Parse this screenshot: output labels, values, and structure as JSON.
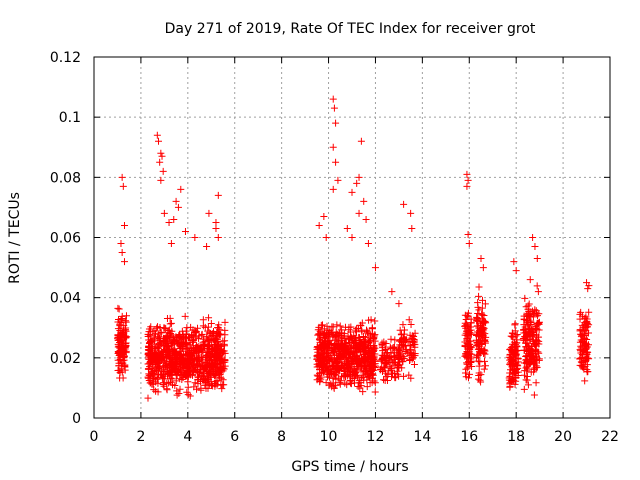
{
  "chart_data": {
    "type": "scatter",
    "title": "Day 271 of 2019, Rate Of TEC Index for receiver grot",
    "xlabel": "GPS time / hours",
    "ylabel": "ROTI / TECUs",
    "xlim": [
      0,
      22
    ],
    "ylim": [
      0,
      0.12
    ],
    "x_ticks": [
      "0",
      "2",
      "4",
      "6",
      "8",
      "10",
      "12",
      "14",
      "16",
      "18",
      "20",
      "22"
    ],
    "y_ticks": [
      "0",
      "0.02",
      "0.04",
      "0.06",
      "0.08",
      "0.1",
      "0.12"
    ],
    "grid": true,
    "marker": "+",
    "color": "#ff0000",
    "series": [
      {
        "name": "ROTI",
        "clusters": [
          {
            "x_range": [
              1.0,
              1.4
            ],
            "y_range": [
              0.01,
              0.04
            ],
            "count": 130
          },
          {
            "x_range": [
              2.3,
              5.6
            ],
            "y_range": [
              0.005,
              0.035
            ],
            "count": 900
          },
          {
            "x_range": [
              9.5,
              12.0
            ],
            "y_range": [
              0.006,
              0.035
            ],
            "count": 700
          },
          {
            "x_range": [
              12.2,
              13.0
            ],
            "y_range": [
              0.008,
              0.03
            ],
            "count": 90
          },
          {
            "x_range": [
              13.0,
              13.7
            ],
            "y_range": [
              0.012,
              0.035
            ],
            "count": 80
          },
          {
            "x_range": [
              15.8,
              16.1
            ],
            "y_range": [
              0.01,
              0.04
            ],
            "count": 90
          },
          {
            "x_range": [
              16.3,
              16.7
            ],
            "y_range": [
              0.008,
              0.045
            ],
            "count": 110
          },
          {
            "x_range": [
              17.7,
              18.1
            ],
            "y_range": [
              0.005,
              0.035
            ],
            "count": 110
          },
          {
            "x_range": [
              18.3,
              19.0
            ],
            "y_range": [
              0.006,
              0.045
            ],
            "count": 200
          },
          {
            "x_range": [
              20.7,
              21.1
            ],
            "y_range": [
              0.008,
              0.04
            ],
            "count": 100
          }
        ],
        "points": [
          [
            1.2,
            0.08
          ],
          [
            1.25,
            0.077
          ],
          [
            1.3,
            0.064
          ],
          [
            1.15,
            0.058
          ],
          [
            1.2,
            0.055
          ],
          [
            1.3,
            0.052
          ],
          [
            2.7,
            0.094
          ],
          [
            2.75,
            0.092
          ],
          [
            2.85,
            0.088
          ],
          [
            2.9,
            0.087
          ],
          [
            2.8,
            0.085
          ],
          [
            2.85,
            0.079
          ],
          [
            2.95,
            0.082
          ],
          [
            3.0,
            0.068
          ],
          [
            3.2,
            0.065
          ],
          [
            3.4,
            0.066
          ],
          [
            3.5,
            0.072
          ],
          [
            3.7,
            0.076
          ],
          [
            3.6,
            0.07
          ],
          [
            3.9,
            0.062
          ],
          [
            4.3,
            0.06
          ],
          [
            4.9,
            0.068
          ],
          [
            5.3,
            0.074
          ],
          [
            5.2,
            0.065
          ],
          [
            5.3,
            0.06
          ],
          [
            5.2,
            0.063
          ],
          [
            4.8,
            0.057
          ],
          [
            3.3,
            0.058
          ],
          [
            9.6,
            0.064
          ],
          [
            9.8,
            0.067
          ],
          [
            9.9,
            0.06
          ],
          [
            10.2,
            0.106
          ],
          [
            10.25,
            0.103
          ],
          [
            10.3,
            0.098
          ],
          [
            10.2,
            0.09
          ],
          [
            10.3,
            0.085
          ],
          [
            10.4,
            0.079
          ],
          [
            10.2,
            0.076
          ],
          [
            11.0,
            0.075
          ],
          [
            11.2,
            0.078
          ],
          [
            11.3,
            0.08
          ],
          [
            11.4,
            0.092
          ],
          [
            11.3,
            0.068
          ],
          [
            11.5,
            0.072
          ],
          [
            11.6,
            0.066
          ],
          [
            10.8,
            0.063
          ],
          [
            11.0,
            0.06
          ],
          [
            11.7,
            0.058
          ],
          [
            12.0,
            0.05
          ],
          [
            13.2,
            0.071
          ],
          [
            13.5,
            0.068
          ],
          [
            13.55,
            0.063
          ],
          [
            12.7,
            0.042
          ],
          [
            13.0,
            0.038
          ],
          [
            15.9,
            0.081
          ],
          [
            15.95,
            0.079
          ],
          [
            15.9,
            0.077
          ],
          [
            15.95,
            0.061
          ],
          [
            16.0,
            0.058
          ],
          [
            16.5,
            0.053
          ],
          [
            16.6,
            0.05
          ],
          [
            17.9,
            0.052
          ],
          [
            18.0,
            0.049
          ],
          [
            18.7,
            0.06
          ],
          [
            18.8,
            0.057
          ],
          [
            18.9,
            0.053
          ],
          [
            18.6,
            0.046
          ],
          [
            21.0,
            0.045
          ],
          [
            21.05,
            0.043
          ],
          [
            21.1,
            0.044
          ]
        ]
      }
    ]
  }
}
